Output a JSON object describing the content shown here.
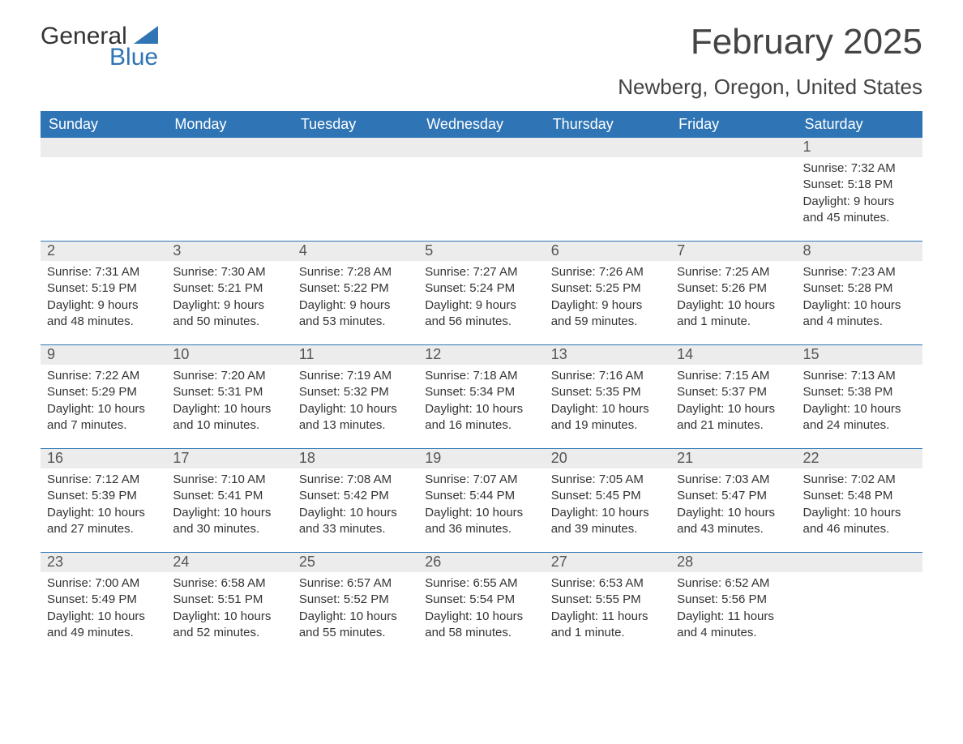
{
  "brand": {
    "name_part1": "General",
    "name_part2": "Blue",
    "text_color": "#333333",
    "accent_color": "#2f75b5"
  },
  "header": {
    "title": "February 2025",
    "location": "Newberg, Oregon, United States",
    "title_fontsize": 44,
    "location_fontsize": 26
  },
  "calendar": {
    "header_bg": "#2f75b5",
    "header_text_color": "#ffffff",
    "daynum_bg": "#ececec",
    "week_divider_color": "#2f75b5",
    "background_color": "#ffffff",
    "body_text_color": "#333333",
    "columns": 7,
    "days_of_week": [
      "Sunday",
      "Monday",
      "Tuesday",
      "Wednesday",
      "Thursday",
      "Friday",
      "Saturday"
    ],
    "weeks": [
      [
        {
          "day": "",
          "sunrise": "",
          "sunset": "",
          "daylight": ""
        },
        {
          "day": "",
          "sunrise": "",
          "sunset": "",
          "daylight": ""
        },
        {
          "day": "",
          "sunrise": "",
          "sunset": "",
          "daylight": ""
        },
        {
          "day": "",
          "sunrise": "",
          "sunset": "",
          "daylight": ""
        },
        {
          "day": "",
          "sunrise": "",
          "sunset": "",
          "daylight": ""
        },
        {
          "day": "",
          "sunrise": "",
          "sunset": "",
          "daylight": ""
        },
        {
          "day": "1",
          "sunrise": "Sunrise: 7:32 AM",
          "sunset": "Sunset: 5:18 PM",
          "daylight": "Daylight: 9 hours and 45 minutes."
        }
      ],
      [
        {
          "day": "2",
          "sunrise": "Sunrise: 7:31 AM",
          "sunset": "Sunset: 5:19 PM",
          "daylight": "Daylight: 9 hours and 48 minutes."
        },
        {
          "day": "3",
          "sunrise": "Sunrise: 7:30 AM",
          "sunset": "Sunset: 5:21 PM",
          "daylight": "Daylight: 9 hours and 50 minutes."
        },
        {
          "day": "4",
          "sunrise": "Sunrise: 7:28 AM",
          "sunset": "Sunset: 5:22 PM",
          "daylight": "Daylight: 9 hours and 53 minutes."
        },
        {
          "day": "5",
          "sunrise": "Sunrise: 7:27 AM",
          "sunset": "Sunset: 5:24 PM",
          "daylight": "Daylight: 9 hours and 56 minutes."
        },
        {
          "day": "6",
          "sunrise": "Sunrise: 7:26 AM",
          "sunset": "Sunset: 5:25 PM",
          "daylight": "Daylight: 9 hours and 59 minutes."
        },
        {
          "day": "7",
          "sunrise": "Sunrise: 7:25 AM",
          "sunset": "Sunset: 5:26 PM",
          "daylight": "Daylight: 10 hours and 1 minute."
        },
        {
          "day": "8",
          "sunrise": "Sunrise: 7:23 AM",
          "sunset": "Sunset: 5:28 PM",
          "daylight": "Daylight: 10 hours and 4 minutes."
        }
      ],
      [
        {
          "day": "9",
          "sunrise": "Sunrise: 7:22 AM",
          "sunset": "Sunset: 5:29 PM",
          "daylight": "Daylight: 10 hours and 7 minutes."
        },
        {
          "day": "10",
          "sunrise": "Sunrise: 7:20 AM",
          "sunset": "Sunset: 5:31 PM",
          "daylight": "Daylight: 10 hours and 10 minutes."
        },
        {
          "day": "11",
          "sunrise": "Sunrise: 7:19 AM",
          "sunset": "Sunset: 5:32 PM",
          "daylight": "Daylight: 10 hours and 13 minutes."
        },
        {
          "day": "12",
          "sunrise": "Sunrise: 7:18 AM",
          "sunset": "Sunset: 5:34 PM",
          "daylight": "Daylight: 10 hours and 16 minutes."
        },
        {
          "day": "13",
          "sunrise": "Sunrise: 7:16 AM",
          "sunset": "Sunset: 5:35 PM",
          "daylight": "Daylight: 10 hours and 19 minutes."
        },
        {
          "day": "14",
          "sunrise": "Sunrise: 7:15 AM",
          "sunset": "Sunset: 5:37 PM",
          "daylight": "Daylight: 10 hours and 21 minutes."
        },
        {
          "day": "15",
          "sunrise": "Sunrise: 7:13 AM",
          "sunset": "Sunset: 5:38 PM",
          "daylight": "Daylight: 10 hours and 24 minutes."
        }
      ],
      [
        {
          "day": "16",
          "sunrise": "Sunrise: 7:12 AM",
          "sunset": "Sunset: 5:39 PM",
          "daylight": "Daylight: 10 hours and 27 minutes."
        },
        {
          "day": "17",
          "sunrise": "Sunrise: 7:10 AM",
          "sunset": "Sunset: 5:41 PM",
          "daylight": "Daylight: 10 hours and 30 minutes."
        },
        {
          "day": "18",
          "sunrise": "Sunrise: 7:08 AM",
          "sunset": "Sunset: 5:42 PM",
          "daylight": "Daylight: 10 hours and 33 minutes."
        },
        {
          "day": "19",
          "sunrise": "Sunrise: 7:07 AM",
          "sunset": "Sunset: 5:44 PM",
          "daylight": "Daylight: 10 hours and 36 minutes."
        },
        {
          "day": "20",
          "sunrise": "Sunrise: 7:05 AM",
          "sunset": "Sunset: 5:45 PM",
          "daylight": "Daylight: 10 hours and 39 minutes."
        },
        {
          "day": "21",
          "sunrise": "Sunrise: 7:03 AM",
          "sunset": "Sunset: 5:47 PM",
          "daylight": "Daylight: 10 hours and 43 minutes."
        },
        {
          "day": "22",
          "sunrise": "Sunrise: 7:02 AM",
          "sunset": "Sunset: 5:48 PM",
          "daylight": "Daylight: 10 hours and 46 minutes."
        }
      ],
      [
        {
          "day": "23",
          "sunrise": "Sunrise: 7:00 AM",
          "sunset": "Sunset: 5:49 PM",
          "daylight": "Daylight: 10 hours and 49 minutes."
        },
        {
          "day": "24",
          "sunrise": "Sunrise: 6:58 AM",
          "sunset": "Sunset: 5:51 PM",
          "daylight": "Daylight: 10 hours and 52 minutes."
        },
        {
          "day": "25",
          "sunrise": "Sunrise: 6:57 AM",
          "sunset": "Sunset: 5:52 PM",
          "daylight": "Daylight: 10 hours and 55 minutes."
        },
        {
          "day": "26",
          "sunrise": "Sunrise: 6:55 AM",
          "sunset": "Sunset: 5:54 PM",
          "daylight": "Daylight: 10 hours and 58 minutes."
        },
        {
          "day": "27",
          "sunrise": "Sunrise: 6:53 AM",
          "sunset": "Sunset: 5:55 PM",
          "daylight": "Daylight: 11 hours and 1 minute."
        },
        {
          "day": "28",
          "sunrise": "Sunrise: 6:52 AM",
          "sunset": "Sunset: 5:56 PM",
          "daylight": "Daylight: 11 hours and 4 minutes."
        },
        {
          "day": "",
          "sunrise": "",
          "sunset": "",
          "daylight": ""
        }
      ]
    ]
  }
}
